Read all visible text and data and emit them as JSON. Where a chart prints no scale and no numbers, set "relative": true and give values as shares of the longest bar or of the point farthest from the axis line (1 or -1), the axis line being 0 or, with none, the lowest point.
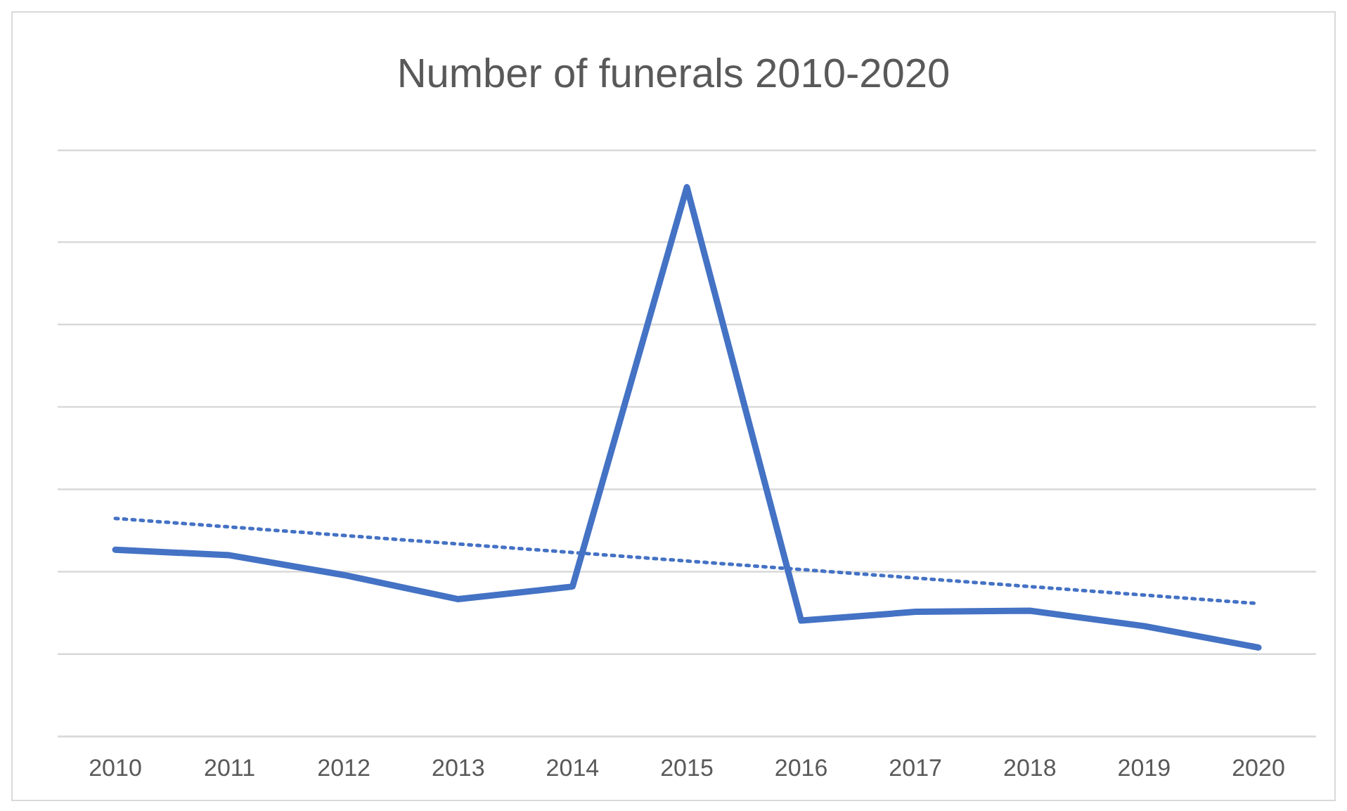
{
  "chart_data": {
    "type": "line",
    "title": "Number of funerals 2010-2020",
    "relative": true,
    "grid": "y",
    "marker": "none",
    "categories": [
      "2010",
      "2011",
      "2012",
      "2013",
      "2014",
      "2015",
      "2016",
      "2017",
      "2018",
      "2019",
      "2020"
    ],
    "series": [
      {
        "color": "#4472c4",
        "line_style": "solid",
        "values": [
          0.34,
          0.33,
          0.294,
          0.25,
          0.273,
          1,
          0.211,
          0.227,
          0.229,
          0.201,
          0.162
        ]
      },
      {
        "color": "#4472c4",
        "line_style": "dotted",
        "values": [
          0.397,
          null,
          null,
          null,
          null,
          null,
          null,
          null,
          null,
          null,
          0.242
        ]
      }
    ]
  }
}
